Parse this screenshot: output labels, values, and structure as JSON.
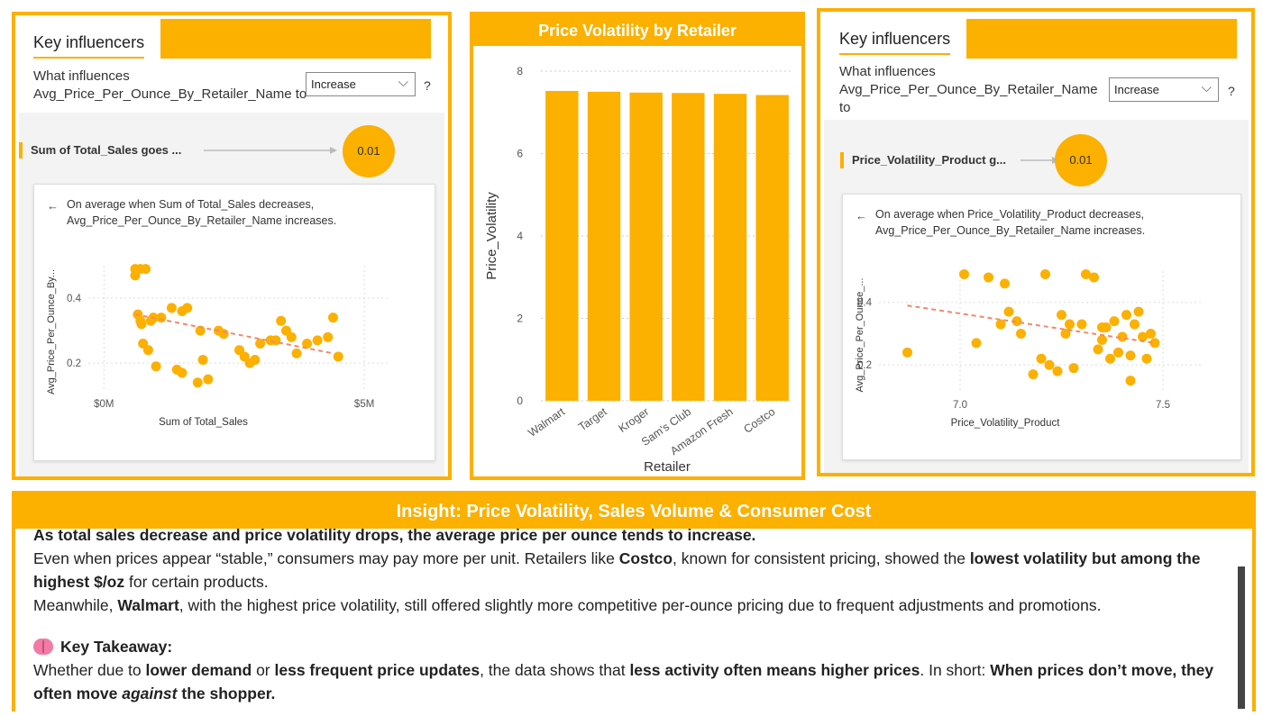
{
  "ki_left": {
    "title": "Key influencers",
    "question_line1": "What influences",
    "question_line2": "Avg_Price_Per_Ounce_By_Retailer_Name to",
    "dropdown_value": "Increase",
    "help": "?",
    "factor_label": "Sum of Total_Sales goes ...",
    "factor_value": "0.01",
    "back": "←",
    "desc_line1": "On average when Sum of Total_Sales decreases,",
    "desc_line2": "Avg_Price_Per_Ounce_By_Retailer_Name increases.",
    "y_axis": "Avg_Price_Per_Ounce_By...",
    "x_axis": "Sum of Total_Sales",
    "x_ticks": [
      "$0M",
      "$5M"
    ],
    "y_ticks": [
      "0.4",
      "0.2"
    ]
  },
  "ki_right": {
    "title": "Key influencers",
    "question_line1": "What influences",
    "question_line2": "Avg_Price_Per_Ounce_By_Retailer_Name",
    "question_line3": "to",
    "dropdown_value": "Increase",
    "help": "?",
    "factor_label": "Price_Volatility_Product g...",
    "factor_value": "0.01",
    "back": "←",
    "desc_line1": "On average when Price_Volatility_Product decreases,",
    "desc_line2": "Avg_Price_Per_Ounce_By_Retailer_Name increases.",
    "y_axis": "Avg_Price_Per_Ounce_...",
    "x_axis": "Price_Volatility_Product",
    "x_ticks": [
      "7.0",
      "7.5"
    ],
    "y_ticks": [
      "0.4",
      "0.2"
    ]
  },
  "chart_data": [
    {
      "type": "bar",
      "title": "Price Volatility by Retailer",
      "xlabel": "Retailer",
      "ylabel": "Price_Volatility",
      "categories": [
        "Walmart",
        "Target",
        "Kroger",
        "Sam's Club",
        "Amazon Fresh",
        "Costco"
      ],
      "values": [
        7.52,
        7.5,
        7.48,
        7.47,
        7.45,
        7.42
      ],
      "ylim": [
        0,
        8
      ],
      "yticks": [
        "0",
        "2",
        "4",
        "6",
        "8"
      ],
      "grid": true,
      "color": "#fcb000"
    },
    {
      "type": "scatter",
      "xlabel": "Sum of Total_Sales",
      "ylabel": "Avg_Price_Per_Ounce_By...",
      "xlim": [
        -0.3,
        5.5
      ],
      "ylim": [
        0.12,
        0.5
      ],
      "x": [
        0.6,
        0.7,
        0.8,
        0.6,
        0.65,
        0.7,
        0.72,
        0.9,
        1.1,
        1.3,
        1.5,
        1.6,
        1.9,
        2.0,
        0.75,
        0.85,
        1.0,
        1.4,
        1.5,
        1.8,
        1.85,
        2.2,
        2.3,
        2.6,
        2.7,
        2.8,
        2.9,
        3.0,
        3.2,
        3.3,
        3.4,
        3.5,
        3.6,
        3.7,
        3.9,
        4.1,
        4.3,
        4.4,
        4.5,
        0.95
      ],
      "y": [
        0.49,
        0.49,
        0.49,
        0.47,
        0.35,
        0.33,
        0.32,
        0.33,
        0.34,
        0.37,
        0.36,
        0.37,
        0.21,
        0.15,
        0.26,
        0.24,
        0.19,
        0.18,
        0.17,
        0.14,
        0.3,
        0.3,
        0.29,
        0.24,
        0.22,
        0.2,
        0.21,
        0.26,
        0.27,
        0.27,
        0.33,
        0.3,
        0.28,
        0.23,
        0.26,
        0.27,
        0.28,
        0.34,
        0.22,
        0.34
      ],
      "trend": {
        "x": [
          0.6,
          4.4
        ],
        "y": [
          0.35,
          0.23
        ]
      },
      "x_ticks": [
        "$0M",
        "$5M"
      ],
      "y_ticks": [
        "0.4",
        "0.2"
      ],
      "color": "#fcb000"
    },
    {
      "type": "scatter",
      "xlabel": "Price_Volatility_Product",
      "ylabel": "Avg_Price_Per_Ounce_...",
      "xlim": [
        6.8,
        7.6
      ],
      "ylim": [
        0.12,
        0.5
      ],
      "x": [
        6.87,
        7.01,
        7.04,
        7.07,
        7.1,
        7.11,
        7.12,
        7.14,
        7.15,
        7.18,
        7.2,
        7.21,
        7.22,
        7.24,
        7.25,
        7.26,
        7.27,
        7.28,
        7.3,
        7.31,
        7.33,
        7.34,
        7.35,
        7.36,
        7.37,
        7.38,
        7.39,
        7.4,
        7.41,
        7.42,
        7.43,
        7.44,
        7.45,
        7.46,
        7.47,
        7.48,
        7.35,
        7.42
      ],
      "y": [
        0.24,
        0.49,
        0.27,
        0.48,
        0.33,
        0.46,
        0.37,
        0.34,
        0.3,
        0.17,
        0.22,
        0.49,
        0.2,
        0.18,
        0.36,
        0.3,
        0.33,
        0.19,
        0.33,
        0.49,
        0.48,
        0.25,
        0.28,
        0.32,
        0.22,
        0.34,
        0.24,
        0.29,
        0.36,
        0.23,
        0.33,
        0.37,
        0.29,
        0.22,
        0.3,
        0.27,
        0.32,
        0.15
      ],
      "trend": {
        "x": [
          6.87,
          7.48
        ],
        "y": [
          0.39,
          0.27
        ]
      },
      "x_ticks": [
        "7.0",
        "7.5"
      ],
      "y_ticks": [
        "0.4",
        "0.2"
      ],
      "color": "#fcb000"
    }
  ],
  "insight": {
    "title": "Insight: Price Volatility, Sales Volume & Consumer Cost",
    "headline": "As total sales decrease and price volatility drops, the average price per ounce tends to increase.",
    "p2_a": "Even when prices appear “stable,” consumers may pay more per unit. Retailers like ",
    "p2_b": "Costco",
    "p2_c": ", known for consistent pricing, showed the ",
    "p2_d": "lowest volatility but among the highest $/oz",
    "p2_e": " for certain products.",
    "p3_a": "Meanwhile, ",
    "p3_b": "Walmart",
    "p3_c": ", with the highest price volatility, still offered slightly more competitive per-ounce pricing due to frequent adjustments and promotions.",
    "takeaway_title": "Key Takeaway:",
    "p5_a": "Whether due to ",
    "p5_b": "lower demand",
    "p5_c": " or ",
    "p5_d": "less frequent price updates",
    "p5_e": ", the data shows that ",
    "p5_f": "less activity often means higher prices",
    "p5_g": ". In short:  ",
    "p5_h": "When prices don’t move, they often move ",
    "p5_i": "against",
    "p5_j": " the shopper."
  }
}
